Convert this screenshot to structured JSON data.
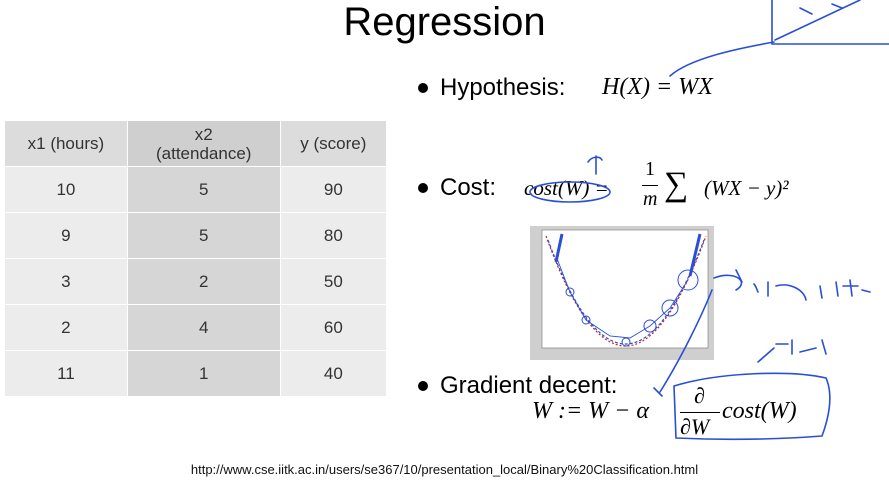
{
  "slide": {
    "title": "Regression",
    "url": "http://www.cse.iitk.ac.in/users/se367/10/presentation_local/Binary%20Classification.html"
  },
  "table": {
    "headers": [
      "x1 (hours)",
      "x2\n(attendance)",
      "y (score)"
    ],
    "rows": [
      [
        "10",
        "5",
        "90"
      ],
      [
        "9",
        "5",
        "80"
      ],
      [
        "3",
        "2",
        "50"
      ],
      [
        "2",
        "4",
        "60"
      ],
      [
        "11",
        "1",
        "40"
      ]
    ]
  },
  "bullets": {
    "hypothesis_label": "Hypothesis:",
    "hypothesis_formula": "H(X) = WX",
    "cost_label": "Cost:",
    "cost_lhs": "cost(W) =",
    "cost_frac_num": "1",
    "cost_frac_den": "m",
    "cost_sum": "∑",
    "cost_rhs": "(WX − y)²",
    "gradient_label": "Gradient decent:",
    "gradient_lhs": "W := W − α",
    "gradient_num": "∂",
    "gradient_den": "∂W",
    "gradient_rhs": "cost(W)"
  },
  "annotations": {
    "handwritten_rate": "learny rate.",
    "handwritten_korean": "기울기"
  },
  "colors": {
    "pen": "#2a4fd6",
    "curve_red": "#cc2222"
  }
}
